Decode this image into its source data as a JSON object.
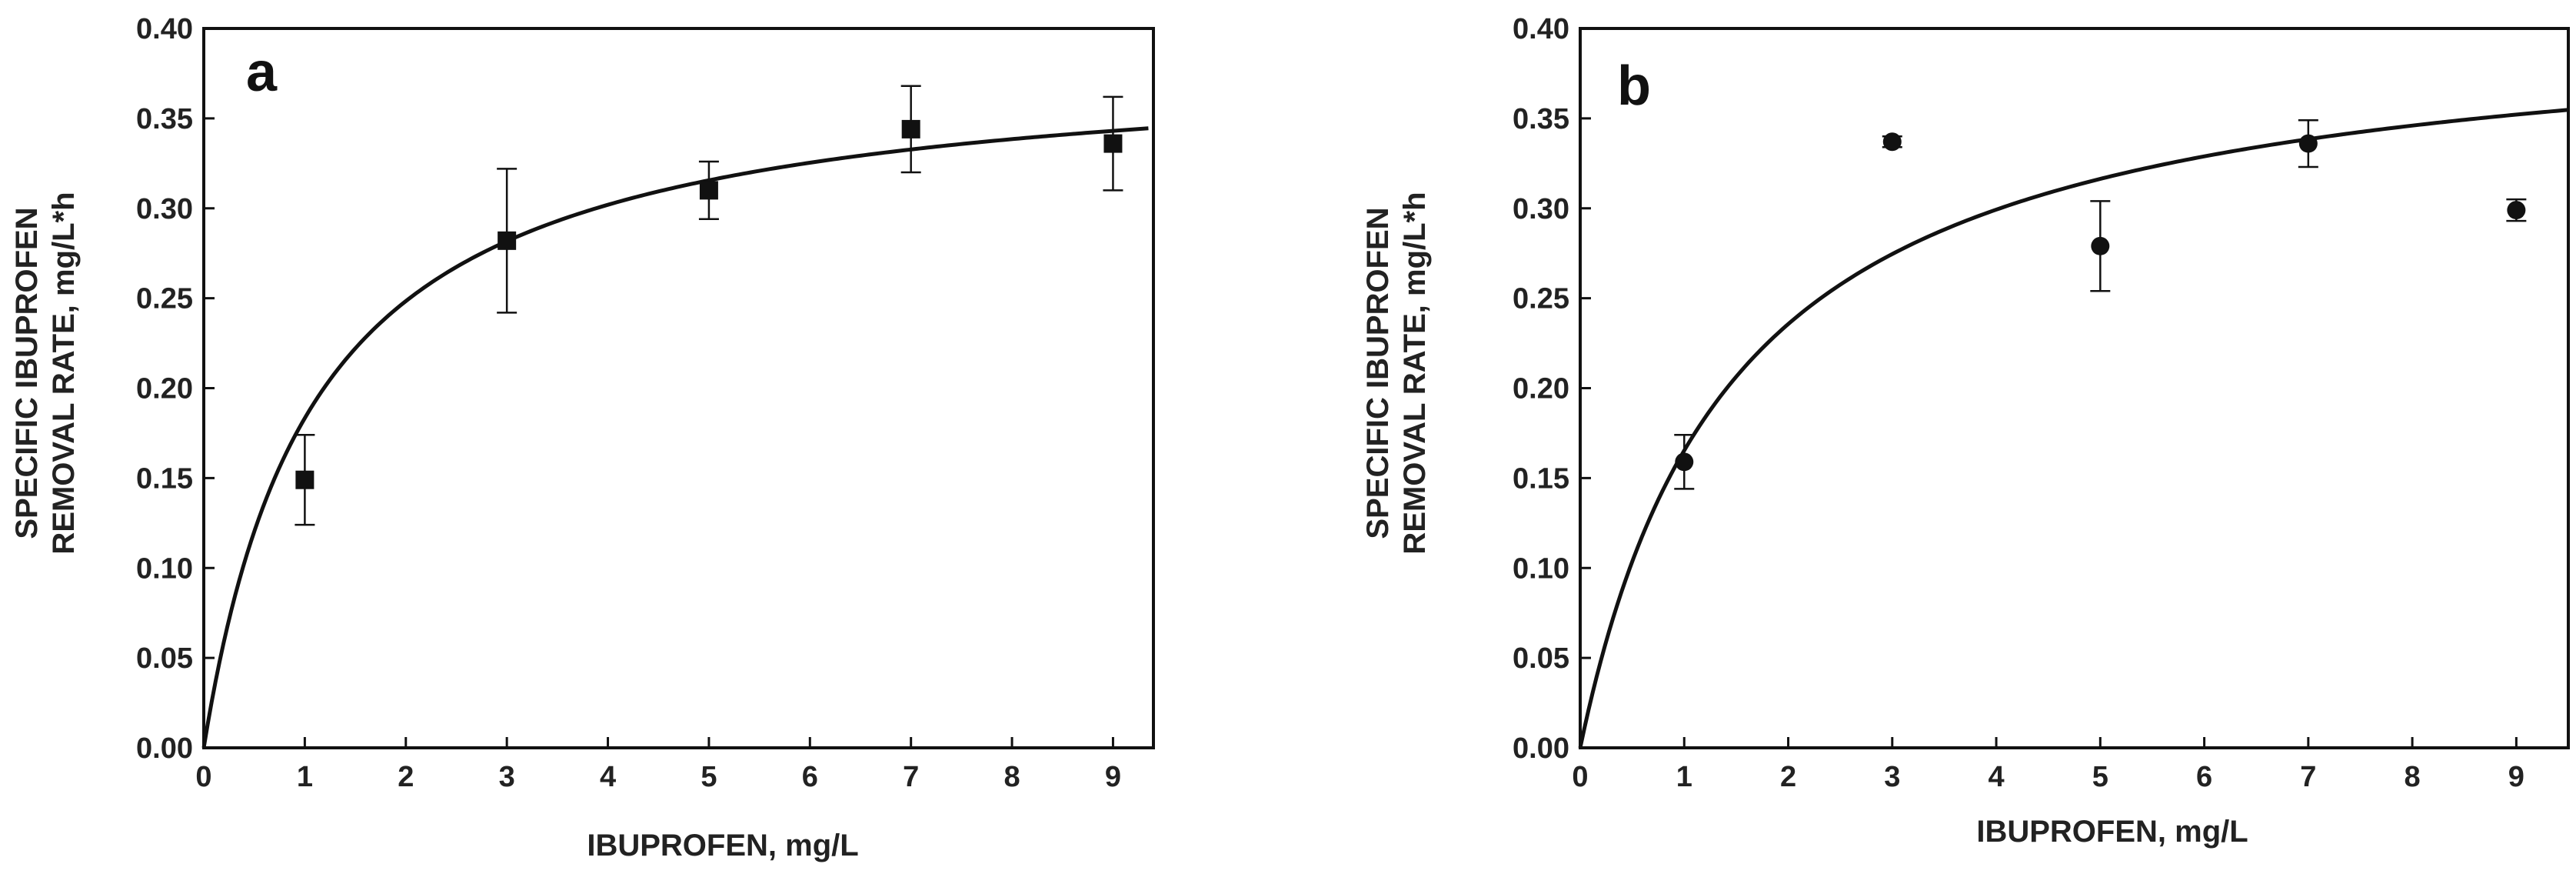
{
  "colors": {
    "ink": "#111111",
    "background": "#ffffff"
  },
  "chart_data": [
    {
      "type": "scatter",
      "panel": "a",
      "marker": "square",
      "xlabel": "IBUPROFEN, mg/L",
      "ylabel_lines": [
        "SPECIFIC IBUPROFEN",
        "REMOVAL RATE, mg/L*h"
      ],
      "xlim": [
        0,
        9.4
      ],
      "ylim": [
        0,
        0.4
      ],
      "xticks": [
        0,
        1,
        2,
        3,
        4,
        5,
        6,
        7,
        8,
        9
      ],
      "xtick_labels": [
        "0",
        "1",
        "2",
        "3",
        "4",
        "5",
        "6",
        "7",
        "8",
        "9"
      ],
      "yticks": [
        0,
        0.05,
        0.1,
        0.15,
        0.2,
        0.25,
        0.3,
        0.35,
        0.4
      ],
      "ytick_labels": [
        "0.00",
        "0.05",
        "0.10",
        "0.15",
        "0.20",
        "0.25",
        "0.30",
        "0.35",
        "0.40"
      ],
      "points": [
        {
          "x": 1,
          "y": 0.149,
          "err": 0.025
        },
        {
          "x": 3,
          "y": 0.282,
          "err": 0.04
        },
        {
          "x": 5,
          "y": 0.31,
          "err": 0.016
        },
        {
          "x": 7,
          "y": 0.344,
          "err": 0.024
        },
        {
          "x": 9,
          "y": 0.336,
          "err": 0.026
        }
      ],
      "fit": {
        "model": "michaelis-menten",
        "vmax": 0.385,
        "km": 1.1,
        "x_range": [
          0,
          9.35
        ]
      }
    },
    {
      "type": "scatter",
      "panel": "b",
      "marker": "circle",
      "xlabel": "IBUPROFEN, mg/L",
      "ylabel_lines": [
        "SPECIFIC IBUPROFEN",
        "REMOVAL RATE, mg/L*h"
      ],
      "xlim": [
        0,
        9.5
      ],
      "ylim": [
        0,
        0.4
      ],
      "xticks": [
        0,
        1,
        2,
        3,
        4,
        5,
        6,
        7,
        8,
        9
      ],
      "xtick_labels": [
        "0",
        "1",
        "2",
        "3",
        "4",
        "5",
        "6",
        "7",
        "8",
        "9"
      ],
      "yticks": [
        0,
        0.05,
        0.1,
        0.15,
        0.2,
        0.25,
        0.3,
        0.35,
        0.4
      ],
      "ytick_labels": [
        "0.00",
        "0.05",
        "0.10",
        "0.15",
        "0.20",
        "0.25",
        "0.30",
        "0.35",
        "0.40"
      ],
      "points": [
        {
          "x": 1,
          "y": 0.159,
          "err": 0.015
        },
        {
          "x": 3,
          "y": 0.337,
          "err": 0.003
        },
        {
          "x": 5,
          "y": 0.279,
          "err": 0.025
        },
        {
          "x": 7,
          "y": 0.336,
          "err": 0.013
        },
        {
          "x": 9,
          "y": 0.299,
          "err": 0.006
        }
      ],
      "fit": {
        "model": "michaelis-menten",
        "vmax": 0.41,
        "km": 1.48,
        "x_range": [
          0,
          9.5
        ]
      }
    }
  ]
}
